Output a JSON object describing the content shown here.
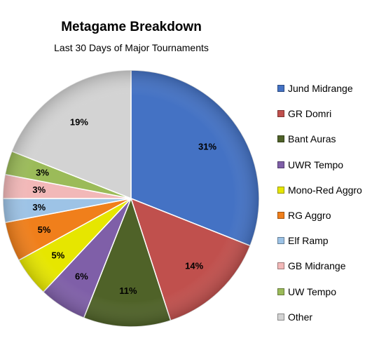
{
  "chart_data": {
    "type": "pie",
    "title": "Metagame Breakdown",
    "subtitle": "Last 30 Days of Major Tournaments",
    "legend_position": "right",
    "slices": [
      {
        "label": "Jund Midrange",
        "value": 31,
        "display": "31%",
        "color": "#4472C4"
      },
      {
        "label": "GR Domri",
        "value": 14,
        "display": "14%",
        "color": "#C0504D"
      },
      {
        "label": "Bant Auras",
        "value": 11,
        "display": "11%",
        "color": "#4F6228"
      },
      {
        "label": "UWR Tempo",
        "value": 6,
        "display": "6%",
        "color": "#7F5FA8"
      },
      {
        "label": "Mono-Red Aggro",
        "value": 5,
        "display": "5%",
        "color": "#E6E600"
      },
      {
        "label": "RG Aggro",
        "value": 5,
        "display": "5%",
        "color": "#F07F1B"
      },
      {
        "label": "Elf Ramp",
        "value": 3,
        "display": "3%",
        "color": "#9DC3E6"
      },
      {
        "label": "GB Midrange",
        "value": 3,
        "display": "3%",
        "color": "#F2B8B8"
      },
      {
        "label": "UW Tempo",
        "value": 3,
        "display": "3%",
        "color": "#9BBB59"
      },
      {
        "label": "Other",
        "value": 19,
        "display": "19%",
        "color": "#D3D3D3"
      }
    ]
  }
}
